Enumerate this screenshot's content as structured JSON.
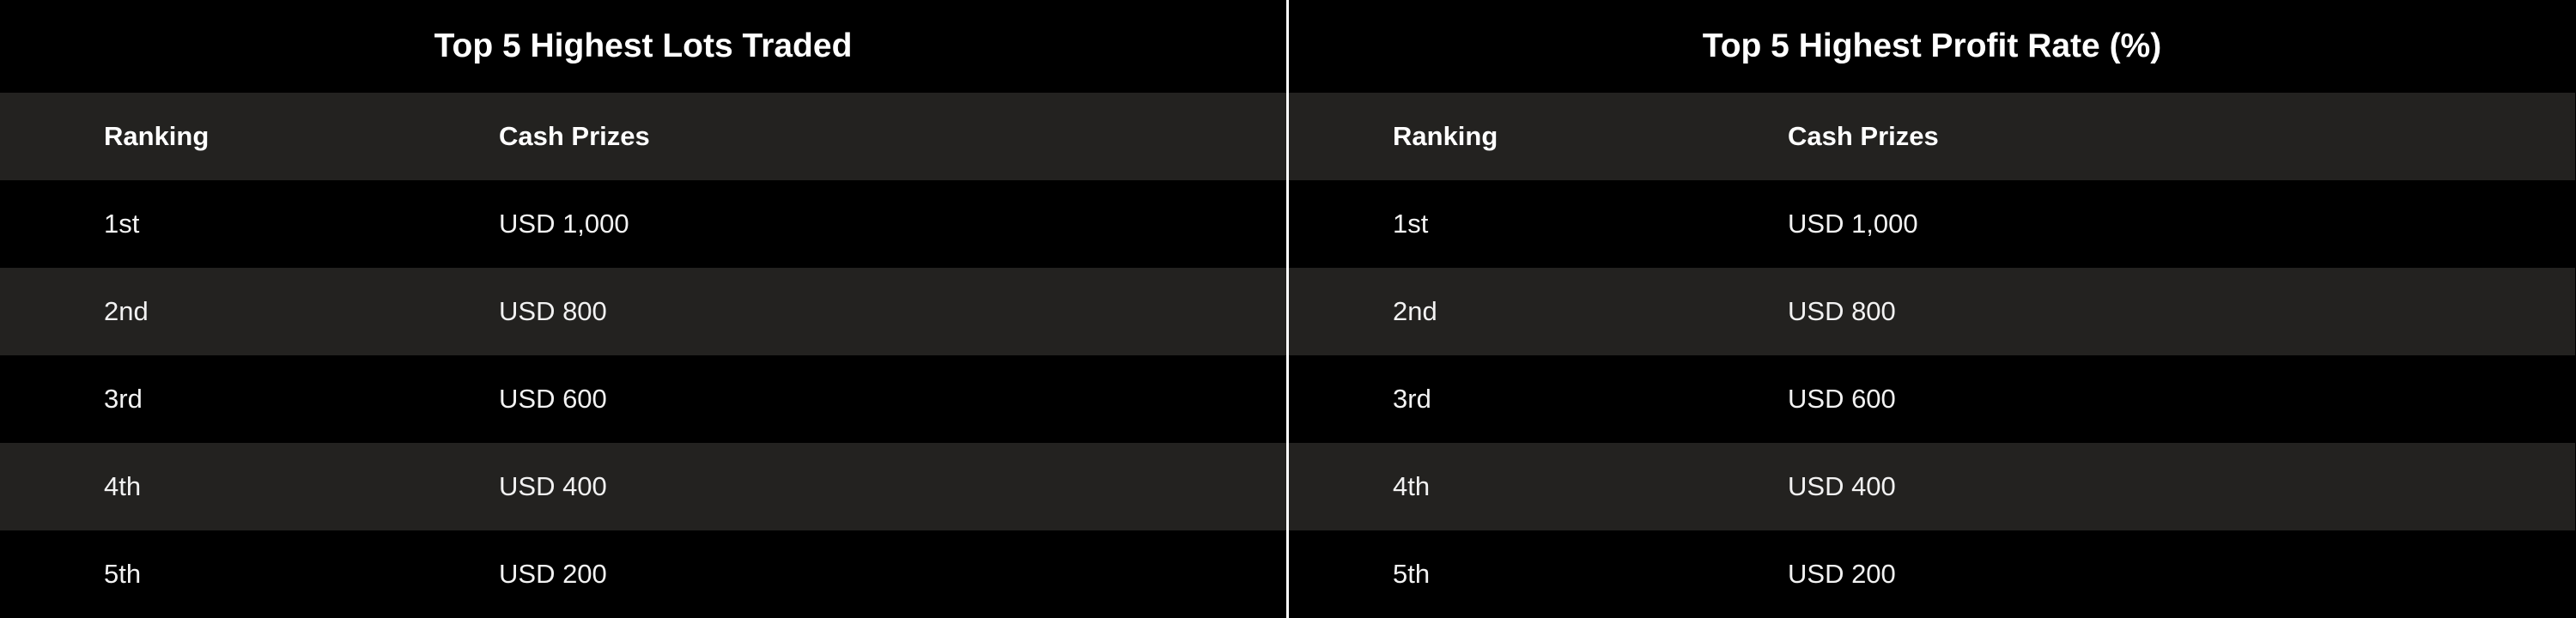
{
  "tables": [
    {
      "title": "Top 5 Highest Lots Traded",
      "headers": [
        "Ranking",
        "Cash Prizes"
      ],
      "rows": [
        [
          "1st",
          "USD 1,000"
        ],
        [
          "2nd",
          "USD 800"
        ],
        [
          "3rd",
          "USD 600"
        ],
        [
          "4th",
          "USD 400"
        ],
        [
          "5th",
          "USD 200"
        ]
      ]
    },
    {
      "title": "Top 5 Highest Profit Rate (%)",
      "headers": [
        "Ranking",
        "Cash Prizes"
      ],
      "rows": [
        [
          "1st",
          "USD 1,000"
        ],
        [
          "2nd",
          "USD 800"
        ],
        [
          "3rd",
          "USD 600"
        ],
        [
          "4th",
          "USD 400"
        ],
        [
          "5th",
          "USD 200"
        ]
      ]
    }
  ],
  "colors": {
    "background": "#000000",
    "stripe": "#232220",
    "text": "#ffffff",
    "divider": "#ffffff"
  }
}
